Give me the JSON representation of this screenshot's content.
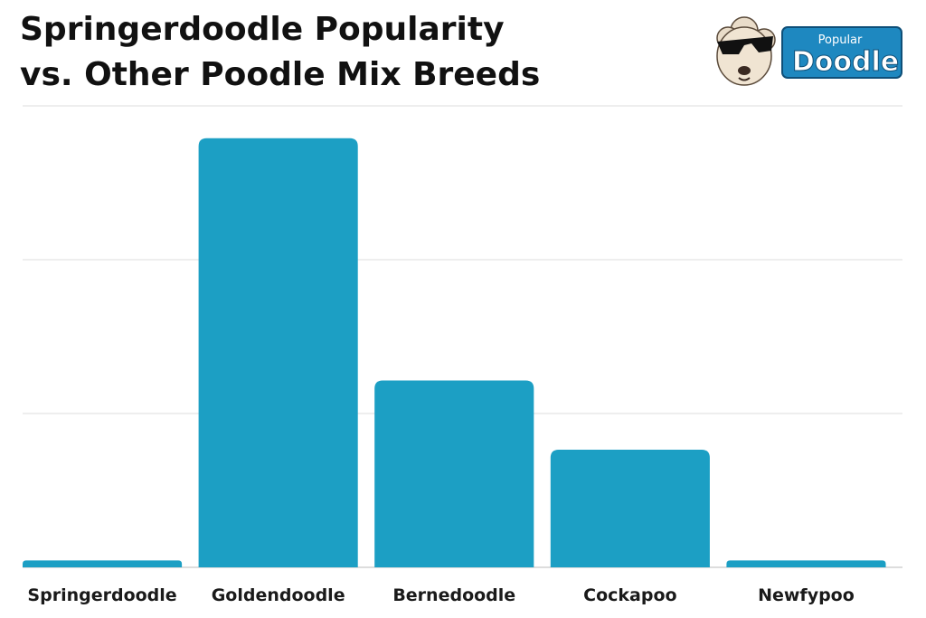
{
  "title_line1": "Springerdoodle Popularity",
  "title_line2": "vs. Other Poodle Mix Breeds",
  "logo": {
    "top_text": "Popular",
    "main_text": "Doodle",
    "icon": "sunglasses-dog-icon"
  },
  "colors": {
    "bar": "#1c9fc4",
    "grid": "#dddddd",
    "logo_bg": "#1e88c0"
  },
  "chart_data": {
    "type": "bar",
    "categories": [
      "Springerdoodle",
      "Goldendoodle",
      "Bernedoodle",
      "Cockapoo",
      "Newfypoo"
    ],
    "values": [
      1.5,
      93,
      40.5,
      25.5,
      1.5
    ],
    "ylim": [
      0,
      100
    ],
    "grid": true,
    "title": "Springerdoodle Popularity vs. Other Poodle Mix Breeds",
    "xlabel": "",
    "ylabel": ""
  }
}
